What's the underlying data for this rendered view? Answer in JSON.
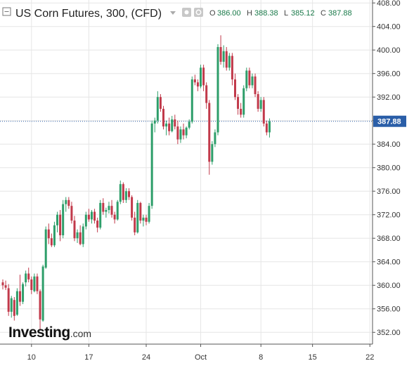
{
  "header": {
    "title": "US Corn Futures, 300, (CFD)",
    "ohlc": [
      {
        "label": "O",
        "value": "386.00"
      },
      {
        "label": "H",
        "value": "388.38"
      },
      {
        "label": "L",
        "value": "385.12"
      },
      {
        "label": "C",
        "value": "387.88"
      }
    ]
  },
  "logo": {
    "main": "Investing",
    "domain": ".com"
  },
  "colors": {
    "up": "#2e9e6a",
    "down": "#c1394a",
    "current_price_line": "#2a5ea8",
    "current_price_badge": "#2a5ea8",
    "grid": "#e6e6e6"
  },
  "chart_data": {
    "type": "candlestick",
    "title": "US Corn Futures, 300, (CFD)",
    "current_price": 387.88,
    "current_price_label": "387.88",
    "ylim": [
      350.0,
      408.5
    ],
    "y_ticks": [
      {
        "value": 352,
        "label": "352.00"
      },
      {
        "value": 356,
        "label": "356.00"
      },
      {
        "value": 360,
        "label": "360.00"
      },
      {
        "value": 364,
        "label": "364.00"
      },
      {
        "value": 368,
        "label": "368.00"
      },
      {
        "value": 372,
        "label": "372.00"
      },
      {
        "value": 376,
        "label": "376.00"
      },
      {
        "value": 380,
        "label": "380.00"
      },
      {
        "value": 384,
        "label": "384.00"
      },
      {
        "value": 388,
        "label": "388.00"
      },
      {
        "value": 392,
        "label": "392.00"
      },
      {
        "value": 396,
        "label": "396.00"
      },
      {
        "value": 400,
        "label": "400.00"
      },
      {
        "value": 404,
        "label": "404.00"
      },
      {
        "value": 408,
        "label": "408.00"
      }
    ],
    "x_ticks": [
      {
        "index": 10,
        "label": "10"
      },
      {
        "index": 30,
        "label": "17"
      },
      {
        "index": 50,
        "label": "24"
      },
      {
        "index": 69,
        "label": "Oct"
      },
      {
        "index": 90,
        "label": "8"
      },
      {
        "index": 108,
        "label": "15"
      },
      {
        "index": 128,
        "label": "22"
      }
    ],
    "candles": [
      [
        360.5,
        361.0,
        359.3,
        360.0
      ],
      [
        360.0,
        360.8,
        359.2,
        359.6
      ],
      [
        359.5,
        360.2,
        354.8,
        355.5
      ],
      [
        355.5,
        358.2,
        354.5,
        357.8
      ],
      [
        357.5,
        358.0,
        354.0,
        354.8
      ],
      [
        355.0,
        359.5,
        354.8,
        359.0
      ],
      [
        359.0,
        361.8,
        356.5,
        357.2
      ],
      [
        357.2,
        360.5,
        356.8,
        360.2
      ],
      [
        360.5,
        362.5,
        359.8,
        362.0
      ],
      [
        362.0,
        363.0,
        360.5,
        361.0
      ],
      [
        361.0,
        361.5,
        358.5,
        359.2
      ],
      [
        359.0,
        362.0,
        358.8,
        361.5
      ],
      [
        361.5,
        362.0,
        358.5,
        359.0
      ],
      [
        359.0,
        359.3,
        352.5,
        354.2
      ],
      [
        354.0,
        363.5,
        353.8,
        363.2
      ],
      [
        363.0,
        370.0,
        362.8,
        369.5
      ],
      [
        369.5,
        370.5,
        367.0,
        368.0
      ],
      [
        368.0,
        368.8,
        366.5,
        366.8
      ],
      [
        366.8,
        370.8,
        366.5,
        370.2
      ],
      [
        370.2,
        372.5,
        369.0,
        372.0
      ],
      [
        372.0,
        372.8,
        367.5,
        368.5
      ],
      [
        368.5,
        374.5,
        368.0,
        373.8
      ],
      [
        373.8,
        375.0,
        372.5,
        374.5
      ],
      [
        374.5,
        375.0,
        373.0,
        373.5
      ],
      [
        373.5,
        374.2,
        370.5,
        371.0
      ],
      [
        371.0,
        371.8,
        367.5,
        368.0
      ],
      [
        368.0,
        369.5,
        367.2,
        369.0
      ],
      [
        369.0,
        370.2,
        366.8,
        367.0
      ],
      [
        367.0,
        370.5,
        366.5,
        370.0
      ],
      [
        370.0,
        372.5,
        369.5,
        372.0
      ],
      [
        372.0,
        373.0,
        370.8,
        371.2
      ],
      [
        371.2,
        372.8,
        370.5,
        372.5
      ],
      [
        372.5,
        373.0,
        370.5,
        371.0
      ],
      [
        371.0,
        371.5,
        369.0,
        369.8
      ],
      [
        369.8,
        374.5,
        369.5,
        374.0
      ],
      [
        374.0,
        374.8,
        372.0,
        372.5
      ],
      [
        372.5,
        373.2,
        371.5,
        372.8
      ],
      [
        372.8,
        374.2,
        372.2,
        373.5
      ],
      [
        373.5,
        374.5,
        371.5,
        372.0
      ],
      [
        372.0,
        372.5,
        370.5,
        371.2
      ],
      [
        371.2,
        374.5,
        371.0,
        374.2
      ],
      [
        374.2,
        377.8,
        373.8,
        377.2
      ],
      [
        377.2,
        377.5,
        374.0,
        374.5
      ],
      [
        374.5,
        376.5,
        374.0,
        376.0
      ],
      [
        376.0,
        376.5,
        374.5,
        375.0
      ],
      [
        375.0,
        375.3,
        371.0,
        371.5
      ],
      [
        371.5,
        372.5,
        368.5,
        369.0
      ],
      [
        369.0,
        374.5,
        368.8,
        374.0
      ],
      [
        374.0,
        374.2,
        370.5,
        371.0
      ],
      [
        371.0,
        372.0,
        370.0,
        371.5
      ],
      [
        371.5,
        372.0,
        370.2,
        370.8
      ],
      [
        370.8,
        374.0,
        370.5,
        373.5
      ],
      [
        373.5,
        388.0,
        373.0,
        387.5
      ],
      [
        387.5,
        388.5,
        386.0,
        388.0
      ],
      [
        388.0,
        393.0,
        387.5,
        392.0
      ],
      [
        392.0,
        392.5,
        389.5,
        390.0
      ],
      [
        390.0,
        390.5,
        386.5,
        387.0
      ],
      [
        387.0,
        388.0,
        385.5,
        387.5
      ],
      [
        387.5,
        388.5,
        385.5,
        386.2
      ],
      [
        386.2,
        388.8,
        386.0,
        388.2
      ],
      [
        388.2,
        389.0,
        386.5,
        387.0
      ],
      [
        387.0,
        388.0,
        384.0,
        384.8
      ],
      [
        384.8,
        387.0,
        384.2,
        386.5
      ],
      [
        386.5,
        387.5,
        384.8,
        385.5
      ],
      [
        385.5,
        387.0,
        385.0,
        386.8
      ],
      [
        386.8,
        388.2,
        386.5,
        387.8
      ],
      [
        387.8,
        395.5,
        387.5,
        395.0
      ],
      [
        395.0,
        395.8,
        394.0,
        394.5
      ],
      [
        394.5,
        395.0,
        393.0,
        393.8
      ],
      [
        393.8,
        397.5,
        393.5,
        397.0
      ],
      [
        397.0,
        397.5,
        393.0,
        394.0
      ],
      [
        394.0,
        394.5,
        390.0,
        391.0
      ],
      [
        391.0,
        391.5,
        378.8,
        381.0
      ],
      [
        381.0,
        384.5,
        380.5,
        384.0
      ],
      [
        384.0,
        386.5,
        383.5,
        386.0
      ],
      [
        386.0,
        401.0,
        385.5,
        400.5
      ],
      [
        400.5,
        402.5,
        397.5,
        398.0
      ],
      [
        398.0,
        400.8,
        397.0,
        399.8
      ],
      [
        399.8,
        400.5,
        396.5,
        397.0
      ],
      [
        397.0,
        399.5,
        396.5,
        399.0
      ],
      [
        399.0,
        399.5,
        394.0,
        395.0
      ],
      [
        395.0,
        396.0,
        391.5,
        392.0
      ],
      [
        392.0,
        392.5,
        389.0,
        390.0
      ],
      [
        390.0,
        391.0,
        388.5,
        389.0
      ],
      [
        389.0,
        394.0,
        388.5,
        393.5
      ],
      [
        393.5,
        397.0,
        393.0,
        396.5
      ],
      [
        396.5,
        397.0,
        393.5,
        394.0
      ],
      [
        394.0,
        396.0,
        393.5,
        395.5
      ],
      [
        395.5,
        396.0,
        392.0,
        392.5
      ],
      [
        392.5,
        393.0,
        389.5,
        390.0
      ],
      [
        390.0,
        392.0,
        389.5,
        391.5
      ],
      [
        391.5,
        392.0,
        387.0,
        387.5
      ],
      [
        387.5,
        388.0,
        385.5,
        386.0
      ],
      [
        386.0,
        388.38,
        385.12,
        387.88
      ]
    ]
  }
}
